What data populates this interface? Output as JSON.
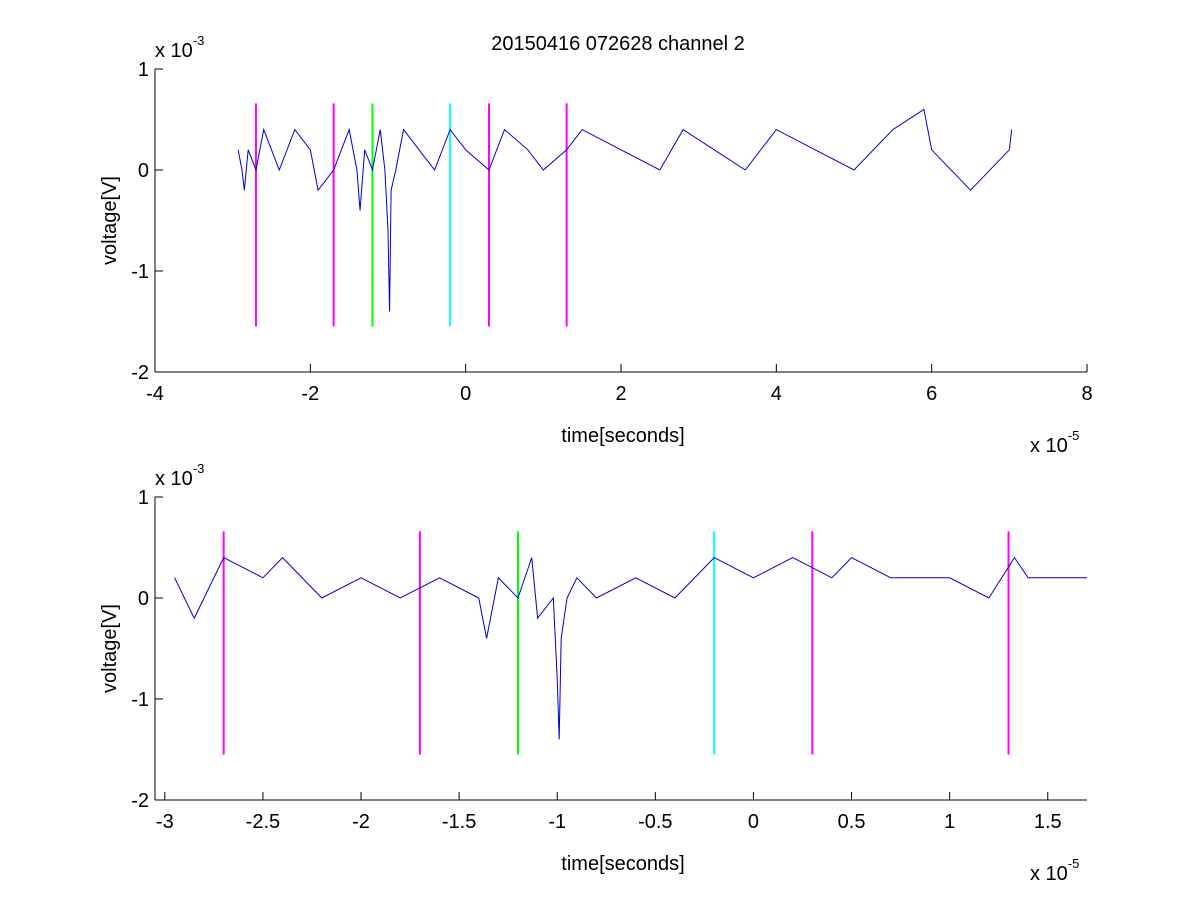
{
  "figure": {
    "title": "20150416 072628 channel 2",
    "background": "#ffffff"
  },
  "chart_data": [
    {
      "type": "line",
      "title": "20150416 072628 channel 2",
      "xlabel": "time[seconds]",
      "ylabel": "voltage[V]",
      "x_multiplier_label": "x 10",
      "x_multiplier_exp": "-5",
      "y_multiplier_label": "x 10",
      "y_multiplier_exp": "-3",
      "xlim": [
        -4,
        8
      ],
      "ylim": [
        -2,
        1
      ],
      "xticks": [
        -4,
        -2,
        0,
        2,
        4,
        6,
        8
      ],
      "xtick_labels": [
        "-4",
        "-2",
        "0",
        "2",
        "4",
        "6",
        "8"
      ],
      "yticks": [
        -2,
        -1,
        0,
        1
      ],
      "ytick_labels": [
        "-2",
        "-1",
        "0",
        "1"
      ],
      "grid": false,
      "series": [
        {
          "color": "#0000cc",
          "x_range": [
            -2.93,
            7.03
          ],
          "points": [
            [
              -2.93,
              0.2
            ],
            [
              -2.88,
              0.0
            ],
            [
              -2.85,
              -0.2
            ],
            [
              -2.8,
              0.2
            ],
            [
              -2.7,
              0.0
            ],
            [
              -2.6,
              0.4
            ],
            [
              -2.5,
              0.2
            ],
            [
              -2.4,
              0.0
            ],
            [
              -2.2,
              0.4
            ],
            [
              -2.0,
              0.2
            ],
            [
              -1.9,
              -0.2
            ],
            [
              -1.7,
              0.0
            ],
            [
              -1.6,
              0.2
            ],
            [
              -1.5,
              0.4
            ],
            [
              -1.4,
              0.0
            ],
            [
              -1.36,
              -0.4
            ],
            [
              -1.3,
              0.2
            ],
            [
              -1.2,
              0.0
            ],
            [
              -1.1,
              0.4
            ],
            [
              -1.04,
              0.0
            ],
            [
              -1.0,
              -0.6
            ],
            [
              -0.98,
              -1.4
            ],
            [
              -0.96,
              -0.2
            ],
            [
              -0.9,
              0.0
            ],
            [
              -0.8,
              0.4
            ],
            [
              -0.6,
              0.2
            ],
            [
              -0.4,
              0.0
            ],
            [
              -0.2,
              0.4
            ],
            [
              0.0,
              0.2
            ],
            [
              0.3,
              0.0
            ],
            [
              0.5,
              0.4
            ],
            [
              0.8,
              0.2
            ],
            [
              1.0,
              0.0
            ],
            [
              1.3,
              0.2
            ],
            [
              1.5,
              0.4
            ],
            [
              2.0,
              0.2
            ],
            [
              2.5,
              0.0
            ],
            [
              2.8,
              0.4
            ],
            [
              3.2,
              0.2
            ],
            [
              3.6,
              0.0
            ],
            [
              4.0,
              0.4
            ],
            [
              4.5,
              0.2
            ],
            [
              5.0,
              0.0
            ],
            [
              5.5,
              0.4
            ],
            [
              5.9,
              0.6
            ],
            [
              6.0,
              0.2
            ],
            [
              6.5,
              -0.2
            ],
            [
              7.0,
              0.2
            ],
            [
              7.03,
              0.4
            ]
          ]
        }
      ],
      "markers": [
        {
          "x": -2.7,
          "color": "#ff00ff"
        },
        {
          "x": -1.7,
          "color": "#ff00ff"
        },
        {
          "x": -1.2,
          "color": "#00ff00"
        },
        {
          "x": -0.2,
          "color": "#00ffff"
        },
        {
          "x": 0.3,
          "color": "#ff00ff"
        },
        {
          "x": 1.3,
          "color": "#ff00ff"
        }
      ],
      "marker_y_range": [
        -1.55,
        0.66
      ]
    },
    {
      "type": "line",
      "xlabel": "time[seconds]",
      "ylabel": "voltage[V]",
      "x_multiplier_label": "x 10",
      "x_multiplier_exp": "-5",
      "y_multiplier_label": "x 10",
      "y_multiplier_exp": "-3",
      "xlim": [
        -3.05,
        1.7
      ],
      "ylim": [
        -2,
        1
      ],
      "xticks": [
        -3,
        -2.5,
        -2,
        -1.5,
        -1,
        -0.5,
        0,
        0.5,
        1,
        1.5
      ],
      "xtick_labels": [
        "-3",
        "-2.5",
        "-2",
        "-1.5",
        "-1",
        "-0.5",
        "0",
        "0.5",
        "1",
        "1.5"
      ],
      "yticks": [
        -2,
        -1,
        0,
        1
      ],
      "ytick_labels": [
        "-2",
        "-1",
        "0",
        "1"
      ],
      "grid": false,
      "series": [
        {
          "color": "#0000cc",
          "x_range": [
            -2.95,
            1.7
          ],
          "points": [
            [
              -2.95,
              0.2
            ],
            [
              -2.9,
              0.0
            ],
            [
              -2.85,
              -0.2
            ],
            [
              -2.7,
              0.4
            ],
            [
              -2.5,
              0.2
            ],
            [
              -2.4,
              0.4
            ],
            [
              -2.2,
              0.0
            ],
            [
              -2.0,
              0.2
            ],
            [
              -1.8,
              0.0
            ],
            [
              -1.6,
              0.2
            ],
            [
              -1.4,
              0.0
            ],
            [
              -1.36,
              -0.4
            ],
            [
              -1.3,
              0.2
            ],
            [
              -1.2,
              0.0
            ],
            [
              -1.13,
              0.4
            ],
            [
              -1.1,
              -0.2
            ],
            [
              -1.02,
              0.0
            ],
            [
              -1.0,
              -0.8
            ],
            [
              -0.99,
              -1.4
            ],
            [
              -0.98,
              -0.4
            ],
            [
              -0.95,
              0.0
            ],
            [
              -0.9,
              0.2
            ],
            [
              -0.8,
              0.0
            ],
            [
              -0.6,
              0.2
            ],
            [
              -0.4,
              0.0
            ],
            [
              -0.2,
              0.4
            ],
            [
              0.0,
              0.2
            ],
            [
              0.2,
              0.4
            ],
            [
              0.4,
              0.2
            ],
            [
              0.5,
              0.4
            ],
            [
              0.7,
              0.2
            ],
            [
              1.0,
              0.2
            ],
            [
              1.2,
              0.0
            ],
            [
              1.33,
              0.4
            ],
            [
              1.4,
              0.2
            ],
            [
              1.7,
              0.2
            ]
          ]
        }
      ],
      "markers": [
        {
          "x": -2.7,
          "color": "#ff00ff"
        },
        {
          "x": -1.7,
          "color": "#ff00ff"
        },
        {
          "x": -1.2,
          "color": "#00ff00"
        },
        {
          "x": -0.2,
          "color": "#00ffff"
        },
        {
          "x": 0.3,
          "color": "#ff00ff"
        },
        {
          "x": 1.3,
          "color": "#ff00ff"
        }
      ],
      "marker_y_range": [
        -1.55,
        0.66
      ]
    }
  ]
}
